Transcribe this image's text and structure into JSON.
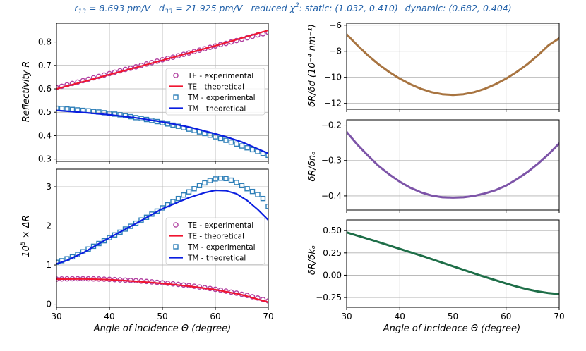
{
  "header": {
    "r13": "r",
    "r13_sub": "13",
    "r13_value": " = 8.693 pm/V",
    "d33": "d",
    "d33_sub": "33",
    "d33_value": " = 21.925 pm/V",
    "chi_label": "reduced χ",
    "chi_sup": "2",
    "static_label": ": static",
    "static_value": ": (1.032,  0.410)",
    "dynamic_label": "dynamic",
    "dynamic_value": ": (0.682,  0.404)"
  },
  "colors": {
    "te_exp": "#b03fa0",
    "te_theo": "#f01530",
    "tm_exp": "#2e7fb8",
    "tm_theo": "#0a1ee0",
    "dd": "#a87440",
    "dn": "#7d54a8",
    "dk": "#1e6e48",
    "grid": "#b0b0b0",
    "header": "#1f5fa8"
  },
  "chart_data": [
    {
      "id": "reflectivity",
      "type": "scatter+line",
      "ylabel": "Reflectivity R",
      "xlim": [
        30,
        70
      ],
      "ylim": [
        0.29,
        0.88
      ],
      "xticks": [
        30,
        40,
        50,
        60,
        70
      ],
      "yticks": [
        0.3,
        0.4,
        0.5,
        0.6,
        0.7,
        0.8
      ],
      "ytick_labels": [
        "0.3",
        "0.4",
        "0.5",
        "0.6",
        "0.7",
        "0.8"
      ],
      "grid": true,
      "legend_position": "center-right",
      "series": [
        {
          "name": "TE - experimental",
          "kind": "markers-circle",
          "x": [
            30,
            31,
            32,
            33,
            34,
            35,
            36,
            37,
            38,
            39,
            40,
            41,
            42,
            43,
            44,
            45,
            46,
            47,
            48,
            49,
            50,
            51,
            52,
            53,
            54,
            55,
            56,
            57,
            58,
            59,
            60,
            61,
            62,
            63,
            64,
            65,
            66,
            67,
            68,
            69,
            70
          ],
          "y": [
            0.605,
            0.611,
            0.617,
            0.623,
            0.629,
            0.635,
            0.641,
            0.647,
            0.653,
            0.659,
            0.665,
            0.671,
            0.677,
            0.683,
            0.688,
            0.694,
            0.7,
            0.706,
            0.712,
            0.718,
            0.724,
            0.73,
            0.735,
            0.741,
            0.747,
            0.753,
            0.759,
            0.765,
            0.771,
            0.777,
            0.783,
            0.789,
            0.794,
            0.8,
            0.806,
            0.812,
            0.818,
            0.824,
            0.83,
            0.835,
            0.841
          ]
        },
        {
          "name": "TE - theoretical",
          "kind": "line",
          "x": [
            30,
            35,
            40,
            45,
            50,
            55,
            60,
            65,
            70
          ],
          "y": [
            0.6,
            0.63,
            0.661,
            0.691,
            0.722,
            0.753,
            0.784,
            0.817,
            0.85
          ]
        },
        {
          "name": "TM - experimental",
          "kind": "markers-square",
          "x": [
            30,
            31,
            32,
            33,
            34,
            35,
            36,
            37,
            38,
            39,
            40,
            41,
            42,
            43,
            44,
            45,
            46,
            47,
            48,
            49,
            50,
            51,
            52,
            53,
            54,
            55,
            56,
            57,
            58,
            59,
            60,
            61,
            62,
            63,
            64,
            65,
            66,
            67,
            68,
            69,
            70
          ],
          "y": [
            0.517,
            0.516,
            0.514,
            0.512,
            0.51,
            0.508,
            0.506,
            0.503,
            0.501,
            0.498,
            0.495,
            0.492,
            0.489,
            0.485,
            0.481,
            0.477,
            0.473,
            0.469,
            0.465,
            0.46,
            0.455,
            0.45,
            0.445,
            0.44,
            0.434,
            0.428,
            0.422,
            0.416,
            0.409,
            0.402,
            0.395,
            0.388,
            0.38,
            0.372,
            0.364,
            0.356,
            0.348,
            0.34,
            0.332,
            0.324,
            0.316
          ]
        },
        {
          "name": "TM - theoretical",
          "kind": "line",
          "x": [
            30,
            35,
            40,
            45,
            50,
            55,
            60,
            62,
            65,
            70
          ],
          "y": [
            0.508,
            0.499,
            0.489,
            0.476,
            0.459,
            0.437,
            0.408,
            0.395,
            0.373,
            0.324
          ]
        }
      ]
    },
    {
      "id": "delta_r",
      "type": "scatter+line",
      "xlabel": "Angle of incidence Θ (degree)",
      "ylabel_prefix": "10",
      "ylabel_sup": "5",
      "ylabel_suffix": " ×  ΔR",
      "xlim": [
        30,
        70
      ],
      "ylim": [
        -0.08,
        3.45
      ],
      "xticks": [
        30,
        40,
        50,
        60,
        70
      ],
      "yticks": [
        0,
        1,
        2,
        3
      ],
      "ytick_labels": [
        "0",
        "1",
        "2",
        "3"
      ],
      "grid": true,
      "legend_position": "lower-right",
      "series": [
        {
          "name": "TE - experimental",
          "kind": "markers-circle",
          "x": [
            30,
            31,
            32,
            33,
            34,
            35,
            36,
            37,
            38,
            39,
            40,
            41,
            42,
            43,
            44,
            45,
            46,
            47,
            48,
            49,
            50,
            51,
            52,
            53,
            54,
            55,
            56,
            57,
            58,
            59,
            60,
            61,
            62,
            63,
            64,
            65,
            66,
            67,
            68,
            69,
            70
          ],
          "y": [
            0.64,
            0.645,
            0.648,
            0.65,
            0.65,
            0.65,
            0.649,
            0.646,
            0.643,
            0.639,
            0.634,
            0.628,
            0.622,
            0.615,
            0.607,
            0.599,
            0.59,
            0.58,
            0.57,
            0.559,
            0.547,
            0.534,
            0.52,
            0.506,
            0.491,
            0.475,
            0.458,
            0.44,
            0.421,
            0.401,
            0.38,
            0.357,
            0.333,
            0.308,
            0.281,
            0.253,
            0.223,
            0.191,
            0.157,
            0.121,
            0.083
          ]
        },
        {
          "name": "TE - theoretical",
          "kind": "line",
          "x": [
            30,
            35,
            40,
            45,
            50,
            55,
            60,
            65,
            70
          ],
          "y": [
            0.64,
            0.645,
            0.627,
            0.585,
            0.53,
            0.46,
            0.37,
            0.24,
            0.05
          ]
        },
        {
          "name": "TM - experimental",
          "kind": "markers-square",
          "x": [
            30,
            31,
            32,
            33,
            34,
            35,
            36,
            37,
            38,
            39,
            40,
            41,
            42,
            43,
            44,
            45,
            46,
            47,
            48,
            49,
            50,
            51,
            52,
            53,
            54,
            55,
            56,
            57,
            58,
            59,
            60,
            61,
            62,
            63,
            64,
            65,
            66,
            67,
            68,
            69,
            70
          ],
          "y": [
            1.07,
            1.11,
            1.16,
            1.21,
            1.27,
            1.34,
            1.41,
            1.48,
            1.55,
            1.62,
            1.7,
            1.77,
            1.84,
            1.92,
            1.99,
            2.07,
            2.15,
            2.22,
            2.3,
            2.38,
            2.46,
            2.54,
            2.62,
            2.7,
            2.79,
            2.87,
            2.95,
            3.03,
            3.1,
            3.16,
            3.2,
            3.22,
            3.21,
            3.17,
            3.11,
            3.03,
            2.95,
            2.88,
            2.8,
            2.7,
            2.5
          ]
        },
        {
          "name": "TM - theoretical",
          "kind": "line",
          "x": [
            30,
            32,
            35,
            40,
            45,
            50,
            55,
            58,
            60,
            62,
            64,
            66,
            68,
            70
          ],
          "y": [
            1.03,
            1.12,
            1.31,
            1.7,
            2.06,
            2.44,
            2.72,
            2.85,
            2.91,
            2.9,
            2.82,
            2.65,
            2.42,
            2.15
          ]
        }
      ]
    },
    {
      "id": "dR_dd",
      "type": "line",
      "ylabel": "δR/δd (10⁻⁴ nm⁻¹)",
      "xlim": [
        30,
        70
      ],
      "ylim": [
        -12.45,
        -5.85
      ],
      "xticks": [
        30,
        40,
        50,
        60,
        70
      ],
      "yticks": [
        -12,
        -10,
        -8,
        -6
      ],
      "ytick_labels": [
        "−12",
        "−10",
        "−8",
        "−6"
      ],
      "grid": true,
      "series": [
        {
          "name": "δR/δd",
          "x": [
            30,
            32,
            34,
            36,
            38,
            40,
            42,
            44,
            46,
            48,
            50,
            52,
            54,
            56,
            58,
            60,
            62,
            64,
            66,
            68,
            70
          ],
          "y": [
            -6.7,
            -7.54,
            -8.31,
            -9.0,
            -9.59,
            -10.1,
            -10.53,
            -10.88,
            -11.14,
            -11.3,
            -11.35,
            -11.3,
            -11.14,
            -10.88,
            -10.53,
            -10.1,
            -9.59,
            -9.0,
            -8.31,
            -7.54,
            -7.0
          ]
        }
      ]
    },
    {
      "id": "dR_dno",
      "type": "line",
      "ylabel": "δR/δnₒ",
      "xlim": [
        30,
        70
      ],
      "ylim": [
        -0.44,
        -0.185
      ],
      "xticks": [
        30,
        40,
        50,
        60,
        70
      ],
      "yticks": [
        -0.4,
        -0.3,
        -0.2
      ],
      "ytick_labels": [
        "−0.4",
        "−0.3",
        "−0.2"
      ],
      "grid": true,
      "series": [
        {
          "name": "δR/δnₒ",
          "x": [
            30,
            32,
            34,
            36,
            38,
            40,
            42,
            44,
            46,
            48,
            50,
            52,
            54,
            56,
            58,
            60,
            62,
            64,
            66,
            68,
            70
          ],
          "y": [
            -0.219,
            -0.255,
            -0.286,
            -0.315,
            -0.339,
            -0.36,
            -0.377,
            -0.39,
            -0.399,
            -0.404,
            -0.405,
            -0.404,
            -0.4,
            -0.393,
            -0.384,
            -0.371,
            -0.353,
            -0.333,
            -0.309,
            -0.282,
            -0.252
          ]
        }
      ]
    },
    {
      "id": "dR_dko",
      "type": "line",
      "xlabel": "Angle of incidence Θ (degree)",
      "ylabel": "δR/δkₒ",
      "xlim": [
        30,
        70
      ],
      "ylim": [
        -0.36,
        0.62
      ],
      "xticks": [
        30,
        40,
        50,
        60,
        70
      ],
      "yticks": [
        -0.25,
        0.0,
        0.25,
        0.5
      ],
      "ytick_labels": [
        "−0.25",
        "0.00",
        "0.25",
        "0.50"
      ],
      "grid": true,
      "series": [
        {
          "name": "δR/δkₒ",
          "x": [
            30,
            35,
            40,
            45,
            50,
            55,
            60,
            62,
            64,
            66,
            68,
            70
          ],
          "y": [
            0.48,
            0.39,
            0.295,
            0.2,
            0.1,
            0.0,
            -0.093,
            -0.128,
            -0.158,
            -0.182,
            -0.2,
            -0.212
          ]
        }
      ]
    }
  ]
}
